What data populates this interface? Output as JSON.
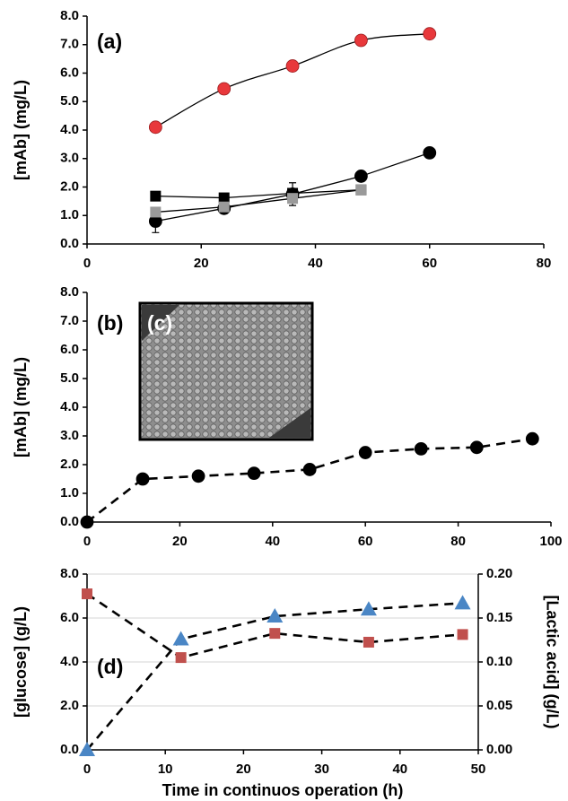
{
  "chart_data": [
    {
      "type": "line",
      "panel_label": "(a)",
      "y_label": "[mAb] (mg/L)",
      "xlim": [
        0,
        80
      ],
      "xticks": [
        0,
        20,
        40,
        60,
        80
      ],
      "ylim": [
        0,
        8
      ],
      "yticks": [
        {
          "value": 0,
          "label": "0.0"
        },
        {
          "value": 1,
          "label": "1.0"
        },
        {
          "value": 2,
          "label": "2.0"
        },
        {
          "value": 3,
          "label": "3.0"
        },
        {
          "value": 4,
          "label": "4.0"
        },
        {
          "value": 5,
          "label": "5.0"
        },
        {
          "value": 6,
          "label": "6.0"
        },
        {
          "value": 7,
          "label": "7.0"
        },
        {
          "value": 8,
          "label": "8.0"
        }
      ],
      "grid": false,
      "series": [
        {
          "color": "#e8383b",
          "marker": "circle",
          "line_style": "solid",
          "curve": "smooth",
          "x": [
            12,
            24,
            36,
            48,
            60
          ],
          "values": [
            4.1,
            5.45,
            6.25,
            7.15,
            7.38
          ]
        },
        {
          "color": "#000000",
          "marker": "circle",
          "line_style": "solid",
          "curve": "straight",
          "x": [
            12,
            24,
            36,
            48,
            60
          ],
          "values": [
            0.8,
            1.25,
            1.75,
            2.38,
            3.2
          ],
          "errors": [
            0.4,
            0.12,
            0.4,
            0.1,
            0.1
          ]
        },
        {
          "color": "#000000",
          "marker": "square",
          "line_style": "solid",
          "curve": "straight",
          "x": [
            12,
            24,
            36,
            48
          ],
          "values": [
            1.68,
            1.62,
            1.78,
            1.9
          ]
        },
        {
          "color": "#9a9a9a",
          "marker": "square",
          "line_style": "solid",
          "curve": "straight",
          "x": [
            12,
            24,
            36,
            48
          ],
          "values": [
            1.12,
            1.3,
            1.6,
            1.9
          ]
        }
      ]
    },
    {
      "type": "line",
      "panel_label": "(b)",
      "inset_label": "(c)",
      "y_label": "[mAb] (mg/L)",
      "xlim": [
        0,
        100
      ],
      "xticks": [
        0,
        20,
        40,
        60,
        80,
        100
      ],
      "ylim": [
        0,
        8
      ],
      "yticks": [
        {
          "value": 0,
          "label": "0.0"
        },
        {
          "value": 1,
          "label": "1.0"
        },
        {
          "value": 2,
          "label": "2.0"
        },
        {
          "value": 3,
          "label": "3.0"
        },
        {
          "value": 4,
          "label": "4.0"
        },
        {
          "value": 5,
          "label": "5.0"
        },
        {
          "value": 6,
          "label": "6.0"
        },
        {
          "value": 7,
          "label": "7.0"
        },
        {
          "value": 8,
          "label": "8.0"
        }
      ],
      "grid": false,
      "series": [
        {
          "color": "#000000",
          "marker": "circle",
          "line_style": "dashed",
          "curve": "straight",
          "x": [
            0,
            12,
            24,
            36,
            48,
            60,
            72,
            84,
            96
          ],
          "values": [
            0,
            1.5,
            1.6,
            1.7,
            1.83,
            2.42,
            2.55,
            2.6,
            2.9
          ]
        }
      ]
    },
    {
      "type": "line",
      "panel_label": "(d)",
      "y_label": "[glucose] (g/L)",
      "y2_label": "[Lactic acid] (g/L)",
      "x_label": "Time in continuos operation (h)",
      "xlim": [
        0,
        50
      ],
      "xticks": [
        0,
        10,
        20,
        30,
        40,
        50
      ],
      "ylim": [
        0,
        8
      ],
      "yticks": [
        {
          "value": 0,
          "label": "0.0"
        },
        {
          "value": 2,
          "label": "2.0"
        },
        {
          "value": 4,
          "label": "4.0"
        },
        {
          "value": 6,
          "label": "6.0"
        },
        {
          "value": 8,
          "label": "8.0"
        }
      ],
      "y2lim": [
        0,
        0.2
      ],
      "y2ticks": [
        {
          "value": 0,
          "label": "0.00"
        },
        {
          "value": 0.05,
          "label": "0.05"
        },
        {
          "value": 0.1,
          "label": "0.10"
        },
        {
          "value": 0.15,
          "label": "0.15"
        },
        {
          "value": 0.2,
          "label": "0.20"
        }
      ],
      "grid": true,
      "series": [
        {
          "color": "#c0504d",
          "marker": "square",
          "line_style": "dashed",
          "curve": "straight",
          "x": [
            0,
            12,
            24,
            36,
            48
          ],
          "values": [
            7.1,
            4.2,
            5.3,
            4.9,
            5.25
          ]
        },
        {
          "color": "#4a86c5",
          "marker": "triangle",
          "line_style": "dashed",
          "curve": "straight",
          "axis": "y2",
          "x": [
            0,
            12,
            24,
            36,
            48
          ],
          "values": [
            0,
            0.126,
            0.152,
            0.16,
            0.167
          ]
        }
      ]
    }
  ]
}
